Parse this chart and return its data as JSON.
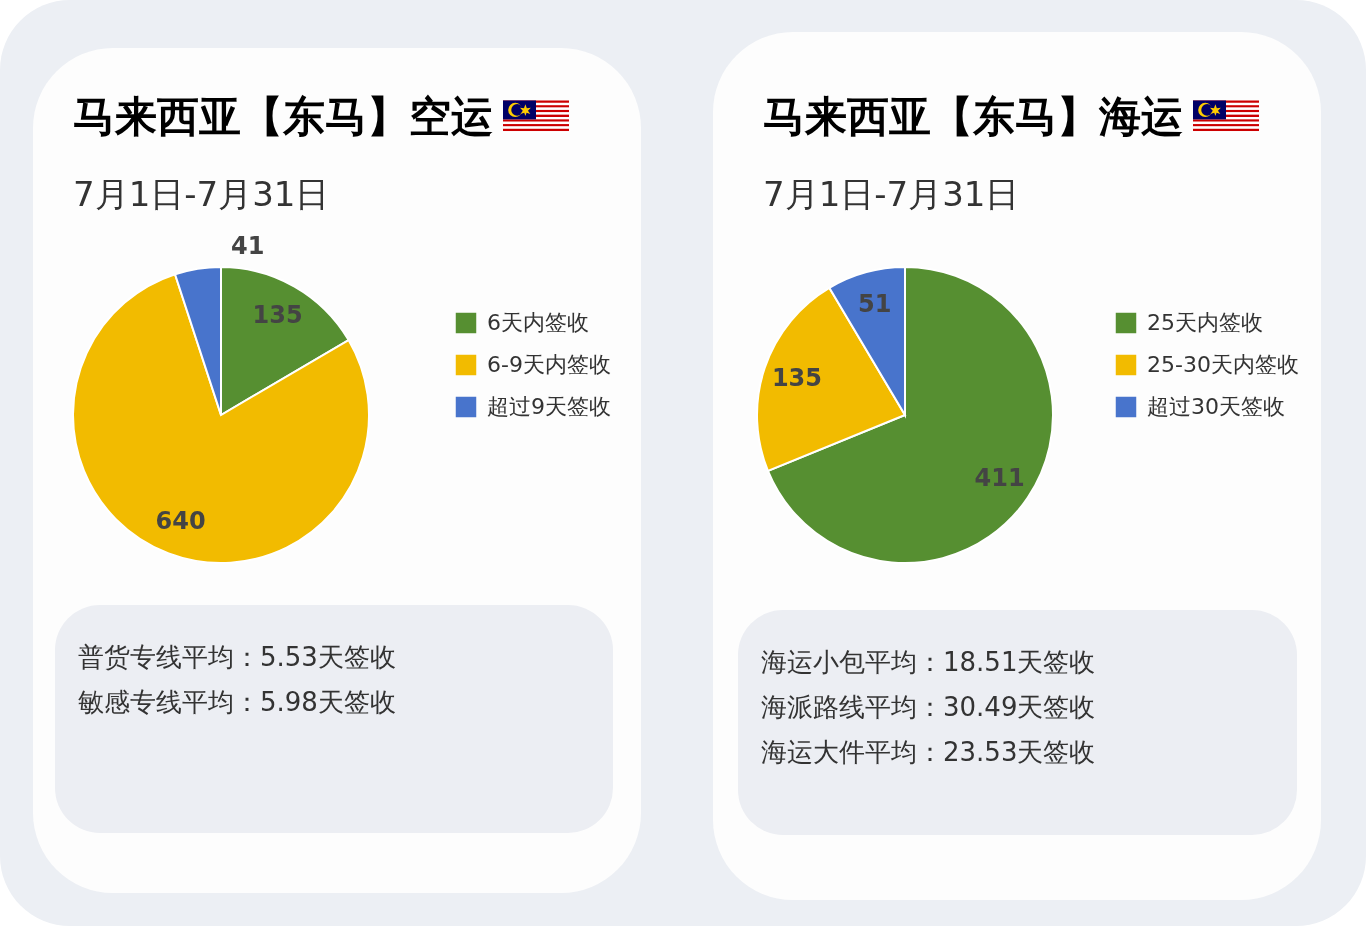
{
  "chart_data": [
    {
      "type": "pie",
      "title": "马来西亚【东马】空运",
      "subtitle": "7月1日-7月31日",
      "categories": [
        "6天内签收",
        "6-9天内签收",
        "超过9天签收"
      ],
      "values": [
        135,
        640,
        41
      ],
      "colors": [
        "#568f31",
        "#f2bb00",
        "#4874cc"
      ],
      "legend": "right",
      "data_labels": true,
      "annotations": [
        "普货专线平均：5.53天签收",
        "敏感专线平均：5.98天签收"
      ]
    },
    {
      "type": "pie",
      "title": "马来西亚【东马】海运",
      "subtitle": "7月1日-7月31日",
      "categories": [
        "25天内签收",
        "25-30天内签收",
        "超过30天签收"
      ],
      "values": [
        411,
        135,
        51
      ],
      "colors": [
        "#568f31",
        "#f2bb00",
        "#4874cc"
      ],
      "legend": "right",
      "data_labels": true,
      "annotations": [
        "海运小包平均：18.51天签收",
        "海派路线平均：30.49天签收",
        "海运大件平均：23.53天签收"
      ]
    }
  ]
}
